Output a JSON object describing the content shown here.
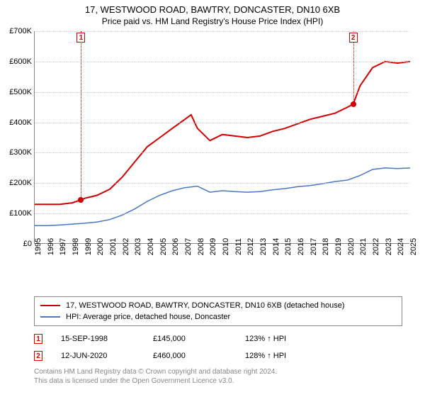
{
  "title": "17, WESTWOOD ROAD, BAWTRY, DONCASTER, DN10 6XB",
  "subtitle": "Price paid vs. HM Land Registry's House Price Index (HPI)",
  "chart": {
    "type": "line",
    "background_color": "#ffffff",
    "grid_color": "#cccccc",
    "axis_color": "#888888",
    "label_fontsize": 11,
    "x": {
      "min": 1995,
      "max": 2025,
      "ticks": [
        1995,
        1996,
        1997,
        1998,
        1999,
        2000,
        2001,
        2002,
        2003,
        2004,
        2005,
        2006,
        2007,
        2008,
        2009,
        2010,
        2011,
        2012,
        2013,
        2014,
        2015,
        2016,
        2017,
        2018,
        2019,
        2020,
        2021,
        2022,
        2023,
        2024,
        2025
      ]
    },
    "y": {
      "min": 0,
      "max": 700000,
      "ticks": [
        0,
        100000,
        200000,
        300000,
        400000,
        500000,
        600000,
        700000
      ],
      "tick_labels": [
        "£0",
        "£100K",
        "£200K",
        "£300K",
        "£400K",
        "£500K",
        "£600K",
        "£700K"
      ]
    },
    "series": [
      {
        "name": "17, WESTWOOD ROAD, BAWTRY, DONCASTER, DN10 6XB (detached house)",
        "color": "#d00000",
        "line_width": 2,
        "x": [
          1995,
          1996,
          1997,
          1998,
          1998.7,
          1999,
          2000,
          2001,
          2002,
          2003,
          2004,
          2005,
          2006,
          2007,
          2007.5,
          2008,
          2009,
          2010,
          2011,
          2012,
          2013,
          2014,
          2015,
          2016,
          2017,
          2018,
          2019,
          2020,
          2020.45,
          2021,
          2022,
          2023,
          2024,
          2025
        ],
        "y": [
          130000,
          130000,
          130000,
          135000,
          145000,
          150000,
          160000,
          180000,
          220000,
          270000,
          320000,
          350000,
          380000,
          410000,
          425000,
          380000,
          340000,
          360000,
          355000,
          350000,
          355000,
          370000,
          380000,
          395000,
          410000,
          420000,
          430000,
          450000,
          460000,
          520000,
          580000,
          600000,
          595000,
          600000
        ]
      },
      {
        "name": "HPI: Average price, detached house, Doncaster",
        "color": "#4a76c7",
        "line_width": 1.5,
        "x": [
          1995,
          1996,
          1997,
          1998,
          1999,
          2000,
          2001,
          2002,
          2003,
          2004,
          2005,
          2006,
          2007,
          2008,
          2009,
          2010,
          2011,
          2012,
          2013,
          2014,
          2015,
          2016,
          2017,
          2018,
          2019,
          2020,
          2021,
          2022,
          2023,
          2024,
          2025
        ],
        "y": [
          60000,
          60000,
          62000,
          65000,
          68000,
          72000,
          80000,
          95000,
          115000,
          140000,
          160000,
          175000,
          185000,
          190000,
          170000,
          175000,
          172000,
          170000,
          172000,
          178000,
          182000,
          188000,
          192000,
          198000,
          205000,
          210000,
          225000,
          245000,
          250000,
          248000,
          250000
        ]
      }
    ],
    "markers": [
      {
        "id": "1",
        "x": 1998.7,
        "y": 145000
      },
      {
        "id": "2",
        "x": 2020.45,
        "y": 460000
      }
    ]
  },
  "legend": {
    "items": [
      {
        "color": "#d00000",
        "label": "17, WESTWOOD ROAD, BAWTRY, DONCASTER, DN10 6XB (detached house)"
      },
      {
        "color": "#4a76c7",
        "label": "HPI: Average price, detached house, Doncaster"
      }
    ]
  },
  "transactions": [
    {
      "id": "1",
      "date": "15-SEP-1998",
      "price": "£145,000",
      "vs_hpi": "123% ↑ HPI"
    },
    {
      "id": "2",
      "date": "12-JUN-2020",
      "price": "£460,000",
      "vs_hpi": "128% ↑ HPI"
    }
  ],
  "footnote_line1": "Contains HM Land Registry data © Crown copyright and database right 2024.",
  "footnote_line2": "This data is licensed under the Open Government Licence v3.0."
}
